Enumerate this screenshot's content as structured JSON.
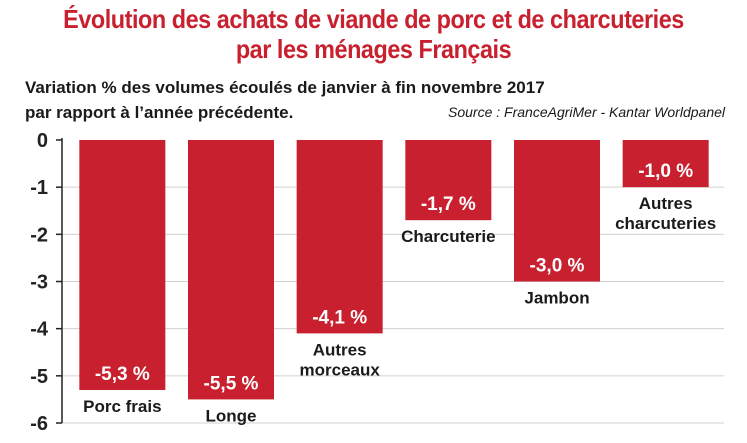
{
  "title_line1": "Évolution des achats de viande de porc et de charcuteries",
  "title_line2": "par les ménages Français",
  "subtitle_line1": "Variation % des volumes écoulés de janvier à fin novembre 2017",
  "subtitle_line2": "par rapport à l’année précédente.",
  "source": "Source : FranceAgriMer - Kantar Worldpanel",
  "colors": {
    "bar": "#c8202f",
    "title": "#c8202f",
    "grid": "#d0d0d0"
  },
  "chart_data": {
    "type": "bar",
    "title": "Évolution des achats de viande de porc et de charcuteries par les ménages Français",
    "ylabel": "",
    "xlabel": "",
    "ylim": [
      -6,
      0
    ],
    "yticks": [
      "0",
      "-1",
      "-2",
      "-3",
      "-4",
      "-5",
      "-6"
    ],
    "grid": true,
    "categories": [
      [
        "Porc frais"
      ],
      [
        "Longe"
      ],
      [
        "Autres",
        "morceaux"
      ],
      [
        "Charcuterie"
      ],
      [
        "Jambon"
      ],
      [
        "Autres",
        "charcuteries"
      ]
    ],
    "values": [
      -5.3,
      -5.5,
      -4.1,
      -1.7,
      -3.0,
      -1.0
    ],
    "value_labels": [
      "-5,3 %",
      "-5,5 %",
      "-4,1 %",
      "-1,7 %",
      "-3,0 %",
      "-1,0 %"
    ]
  }
}
